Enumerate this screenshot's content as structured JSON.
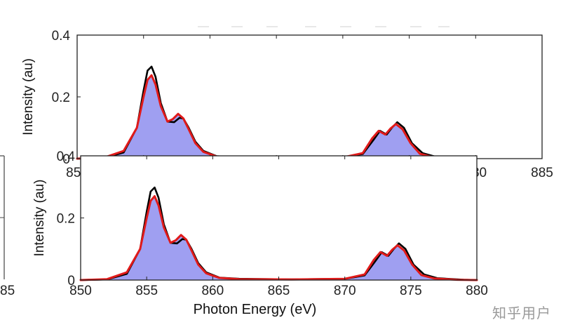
{
  "chart_data": [
    {
      "type": "area",
      "panel": "top",
      "xlabel": "Photon Energy (eV)",
      "ylabel": "Intensity (au)",
      "xlim": [
        850,
        885
      ],
      "ylim": [
        0,
        0.4
      ],
      "xticks": [
        "850",
        "855",
        "860",
        "865",
        "870",
        "875",
        "880",
        "885"
      ],
      "yticks": [
        "0",
        "0.2",
        "0.4"
      ],
      "series": [
        {
          "name": "experiment",
          "color": "#000000",
          "style": "line",
          "x": [
            850,
            852,
            853.5,
            854.5,
            855,
            855.3,
            855.6,
            855.9,
            856.3,
            856.8,
            857.3,
            857.7,
            858.0,
            858.4,
            858.9,
            859.5,
            860.5,
            862,
            866,
            870,
            871.5,
            872.3,
            872.8,
            873.3,
            873.7,
            874.1,
            874.6,
            875.2,
            876,
            877,
            879,
            880
          ],
          "y": [
            0,
            0.002,
            0.02,
            0.1,
            0.22,
            0.285,
            0.298,
            0.265,
            0.18,
            0.12,
            0.118,
            0.132,
            0.13,
            0.1,
            0.055,
            0.025,
            0.008,
            0.004,
            0.002,
            0.004,
            0.015,
            0.06,
            0.09,
            0.078,
            0.1,
            0.118,
            0.1,
            0.05,
            0.018,
            0.006,
            0.001,
            0
          ]
        },
        {
          "name": "simulation",
          "color": "#e01a1a",
          "style": "line",
          "fill": "#9595f0",
          "x": [
            850,
            852,
            853.5,
            854.5,
            855,
            855.3,
            855.6,
            855.9,
            856.3,
            856.8,
            857.2,
            857.6,
            858.0,
            858.4,
            858.9,
            859.5,
            860.5,
            862,
            866,
            870,
            871.5,
            872.2,
            872.7,
            873.2,
            873.6,
            874.0,
            874.5,
            875.1,
            875.8,
            876.8,
            878.5,
            880
          ],
          "y": [
            0,
            0.003,
            0.025,
            0.1,
            0.2,
            0.255,
            0.27,
            0.24,
            0.17,
            0.12,
            0.128,
            0.145,
            0.13,
            0.095,
            0.05,
            0.022,
            0.007,
            0.003,
            0.002,
            0.004,
            0.018,
            0.065,
            0.09,
            0.078,
            0.098,
            0.112,
            0.095,
            0.05,
            0.016,
            0.005,
            0.001,
            0
          ]
        }
      ]
    },
    {
      "type": "area",
      "panel": "bottom",
      "xlabel": "Photon Energy (eV)",
      "ylabel": "Intensity (au)",
      "xlim": [
        850,
        880
      ],
      "ylim": [
        0,
        0.4
      ],
      "xticks": [
        "850",
        "855",
        "860",
        "865",
        "870",
        "875",
        "880"
      ],
      "yticks": [
        "0",
        "0.2",
        "0.4"
      ],
      "series": [
        {
          "name": "experiment",
          "color": "#000000",
          "style": "line",
          "x": [
            850,
            852,
            853.5,
            854.5,
            855,
            855.3,
            855.6,
            855.9,
            856.3,
            856.8,
            857.3,
            857.7,
            858.0,
            858.4,
            858.9,
            859.5,
            860.5,
            862,
            866,
            870,
            871.5,
            872.3,
            872.8,
            873.3,
            873.7,
            874.1,
            874.6,
            875.2,
            876,
            877,
            879,
            880
          ],
          "y": [
            0,
            0.002,
            0.02,
            0.1,
            0.22,
            0.285,
            0.298,
            0.265,
            0.18,
            0.12,
            0.118,
            0.132,
            0.13,
            0.1,
            0.055,
            0.025,
            0.008,
            0.004,
            0.002,
            0.004,
            0.015,
            0.06,
            0.09,
            0.078,
            0.1,
            0.118,
            0.1,
            0.05,
            0.018,
            0.006,
            0.001,
            0
          ]
        },
        {
          "name": "simulation",
          "color": "#e01a1a",
          "style": "line",
          "fill": "#9595f0",
          "x": [
            850,
            852,
            853.5,
            854.5,
            855,
            855.3,
            855.6,
            855.9,
            856.3,
            856.8,
            857.2,
            857.6,
            858.0,
            858.4,
            858.9,
            859.5,
            860.5,
            862,
            866,
            870,
            871.5,
            872.2,
            872.7,
            873.2,
            873.6,
            874.0,
            874.5,
            875.1,
            875.8,
            876.8,
            878.5,
            880
          ],
          "y": [
            0,
            0.003,
            0.025,
            0.1,
            0.2,
            0.255,
            0.27,
            0.24,
            0.17,
            0.12,
            0.128,
            0.145,
            0.13,
            0.095,
            0.05,
            0.022,
            0.007,
            0.003,
            0.002,
            0.004,
            0.018,
            0.065,
            0.09,
            0.078,
            0.098,
            0.112,
            0.095,
            0.05,
            0.016,
            0.005,
            0.001,
            0
          ]
        }
      ]
    }
  ],
  "edge_fragment": {
    "tick": "85"
  },
  "watermark": "知乎用户"
}
